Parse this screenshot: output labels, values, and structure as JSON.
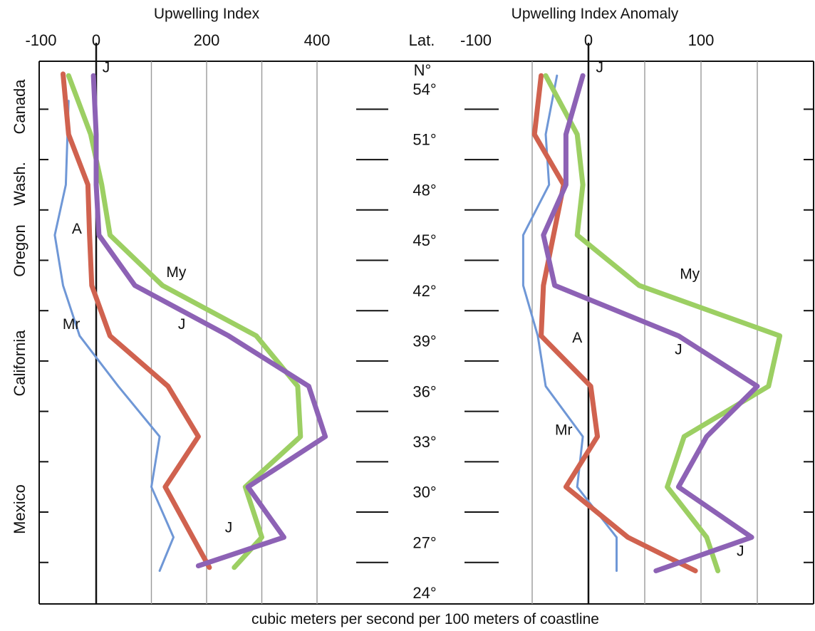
{
  "chart_data": [
    {
      "type": "line",
      "title": "Upwelling Index",
      "xlim": [
        -110,
        500
      ],
      "ylim": [
        23,
        56
      ],
      "x_ticks": [
        {
          "value": -100,
          "label": "-100"
        },
        {
          "value": 0,
          "label": "0"
        },
        {
          "value": 200,
          "label": "200"
        },
        {
          "value": 400,
          "label": "400"
        }
      ],
      "grid_values": [
        100,
        200,
        300,
        400
      ],
      "series": [
        {
          "name": "Mr",
          "color": "#6f97d6",
          "label_at": [
            -45,
            39.4
          ],
          "points": [
            [
              -50,
              53
            ],
            [
              -55,
              48
            ],
            [
              -75,
              45
            ],
            [
              -60,
              42
            ],
            [
              -30,
              39
            ],
            [
              40,
              36
            ],
            [
              115,
              33
            ],
            [
              100,
              30
            ],
            [
              140,
              27
            ],
            [
              115,
              25
            ]
          ]
        },
        {
          "name": "A",
          "color": "#d0624f",
          "label_at": [
            -35,
            45.1
          ],
          "points": [
            [
              -60,
              54.6
            ],
            [
              -50,
              51
            ],
            [
              -15,
              48
            ],
            [
              -12,
              45
            ],
            [
              -8,
              42
            ],
            [
              25,
              39
            ],
            [
              130,
              36
            ],
            [
              185,
              33
            ],
            [
              125,
              30
            ],
            [
              175,
              27
            ],
            [
              205,
              25.2
            ]
          ]
        },
        {
          "name": "My",
          "color": "#9ccf63",
          "label_at": [
            145,
            42.5
          ],
          "points": [
            [
              -50,
              54.5
            ],
            [
              -10,
              51
            ],
            [
              10,
              48
            ],
            [
              25,
              45
            ],
            [
              120,
              42
            ],
            [
              290,
              39
            ],
            [
              365,
              36
            ],
            [
              370,
              33
            ],
            [
              270,
              30
            ],
            [
              300,
              27
            ],
            [
              250,
              25.2
            ]
          ]
        },
        {
          "name": "J",
          "color": "#8d62b5",
          "label_at": [
            [
              18,
              54.7
            ],
            [
              155,
              39.4
            ],
            [
              240,
              27.3
            ]
          ],
          "points": [
            [
              -5,
              54.5
            ],
            [
              0,
              51
            ],
            [
              0,
              48
            ],
            [
              5,
              45
            ],
            [
              70,
              42
            ],
            [
              240,
              39
            ],
            [
              385,
              36
            ],
            [
              415,
              33
            ],
            [
              275,
              30
            ],
            [
              340,
              27
            ],
            [
              185,
              25.3
            ]
          ]
        }
      ]
    },
    {
      "type": "line",
      "title": "Upwelling Index Anomaly",
      "xlim": [
        -105,
        200
      ],
      "ylim": [
        23,
        56
      ],
      "x_ticks": [
        {
          "value": -100,
          "label": "-100"
        },
        {
          "value": 0,
          "label": "0"
        },
        {
          "value": 100,
          "label": "100"
        }
      ],
      "grid_values": [
        -50,
        50,
        100,
        150
      ],
      "series": [
        {
          "name": "Mr",
          "color": "#6f97d6",
          "label_at": [
            -22,
            33.1
          ],
          "points": [
            [
              -28,
              54.5
            ],
            [
              -38,
              51
            ],
            [
              -35,
              48
            ],
            [
              -58,
              45
            ],
            [
              -58,
              42
            ],
            [
              -45,
              39
            ],
            [
              -38,
              36
            ],
            [
              -5,
              33
            ],
            [
              -10,
              30
            ],
            [
              25,
              27
            ],
            [
              25,
              25
            ]
          ]
        },
        {
          "name": "A",
          "color": "#d0624f",
          "label_at": [
            -10,
            38.6
          ],
          "points": [
            [
              -42,
              54.5
            ],
            [
              -48,
              51
            ],
            [
              -22,
              48
            ],
            [
              -40,
              42
            ],
            [
              -42,
              39
            ],
            [
              2,
              36
            ],
            [
              8,
              33
            ],
            [
              -20,
              30
            ],
            [
              35,
              27
            ],
            [
              95,
              25
            ]
          ]
        },
        {
          "name": "My",
          "color": "#9ccf63",
          "label_at": [
            90,
            42.4
          ],
          "points": [
            [
              -38,
              54.5
            ],
            [
              -10,
              51
            ],
            [
              -5,
              48
            ],
            [
              -10,
              45
            ],
            [
              45,
              42
            ],
            [
              170,
              39
            ],
            [
              160,
              36
            ],
            [
              85,
              33
            ],
            [
              70,
              30
            ],
            [
              105,
              27
            ],
            [
              115,
              25
            ]
          ]
        },
        {
          "name": "J",
          "color": "#8d62b5",
          "label_at": [
            [
              10,
              54.7
            ],
            [
              80,
              37.9
            ],
            [
              135,
              25.9
            ]
          ],
          "points": [
            [
              -5,
              54.5
            ],
            [
              -20,
              51
            ],
            [
              -20,
              48
            ],
            [
              -40,
              45
            ],
            [
              -30,
              42
            ],
            [
              80,
              39
            ],
            [
              150,
              36
            ],
            [
              105,
              33
            ],
            [
              80,
              30
            ],
            [
              145,
              27
            ],
            [
              60,
              25
            ]
          ]
        }
      ]
    }
  ],
  "center_axis": {
    "heading": "Lat.",
    "unit": "N°",
    "labels": [
      "54°",
      "51°",
      "48°",
      "45°",
      "42°",
      "39°",
      "36°",
      "33°",
      "30°",
      "27°",
      "24°"
    ]
  },
  "regions": [
    "Canada",
    "Wash.",
    "Oregon",
    "California",
    "Mexico"
  ],
  "footer": "cubic meters per second per 100 meters of coastline"
}
